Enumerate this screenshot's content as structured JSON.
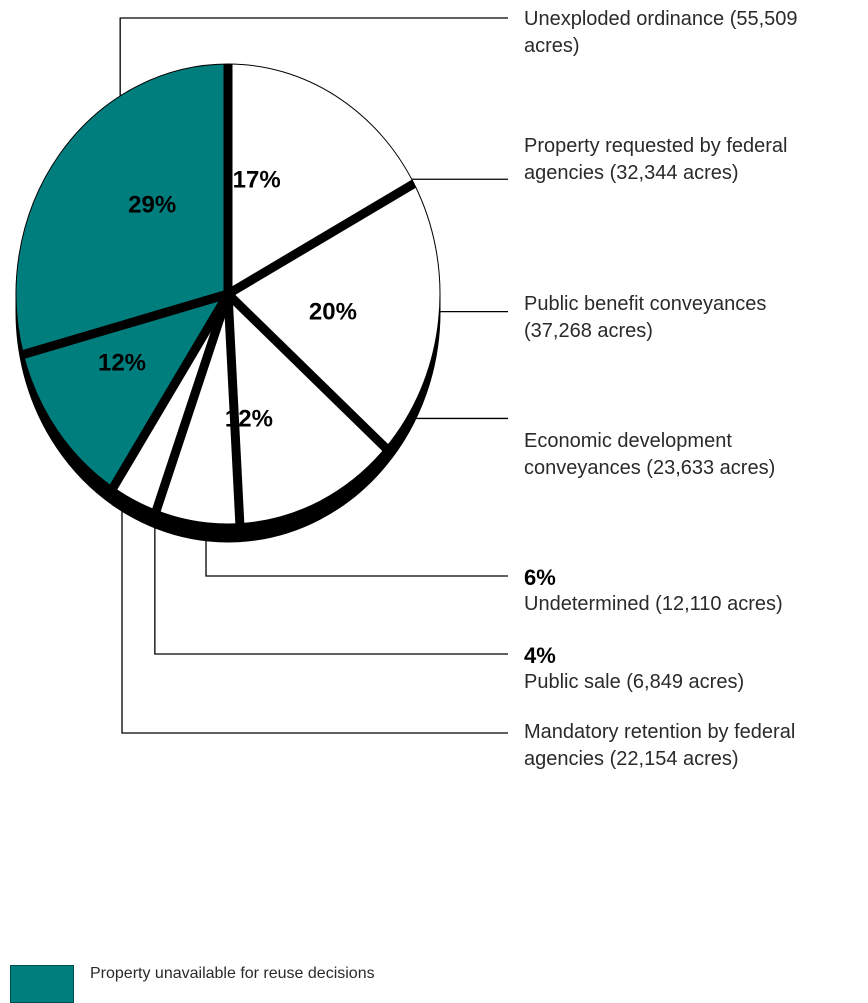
{
  "chart_data": {
    "type": "pie",
    "unit": "acres",
    "slices": [
      {
        "label": "Property requested by federal agencies (32,344 acres)",
        "acres": 32344,
        "percent": "17%",
        "unavailable": false
      },
      {
        "label": "Public benefit conveyances (37,268 acres)",
        "acres": 37268,
        "percent": "20%",
        "unavailable": false
      },
      {
        "label": "Economic development conveyances (23,633 acres)",
        "acres": 23633,
        "percent": "12%",
        "unavailable": false
      },
      {
        "label": "Undetermined (12,110 acres)",
        "acres": 12110,
        "percent": "6%",
        "unavailable": false
      },
      {
        "label": "Public sale (6,849 acres)",
        "acres": 6849,
        "percent": "4%",
        "unavailable": false
      },
      {
        "label": "Mandatory retention by federal agencies (22,154 acres)",
        "acres": 22154,
        "percent": "12%",
        "unavailable": true
      },
      {
        "label": "Unexploded ordinance (55,509 acres)",
        "acres": 55509,
        "percent": "29%",
        "unavailable": true
      }
    ],
    "colors": {
      "unavailable": "#007e7e",
      "available": "#ffffff",
      "outline": "#000000"
    },
    "legend": {
      "label": "Property unavailable for reuse decisions",
      "placement": "bottom-left"
    }
  },
  "labels": {
    "unexploded_line1": "Unexploded ordinance (55,509",
    "unexploded_line2": "acres)",
    "federal_line1": "Property requested by federal",
    "federal_line2": "agencies (32,344 acres)",
    "public_benefit_line1": "Public benefit conveyances",
    "public_benefit_line2": "(37,268 acres)",
    "economic_line1": "Economic development",
    "economic_line2": "conveyances (23,633 acres)",
    "undetermined_pct": "6%",
    "undetermined_text": "Undetermined (12,110 acres)",
    "public_sale_pct": "4%",
    "public_sale_text": "Public sale (6,849 acres)",
    "mandatory_line1": "Mandatory retention by federal",
    "mandatory_line2": "agencies (22,154 acres)"
  }
}
